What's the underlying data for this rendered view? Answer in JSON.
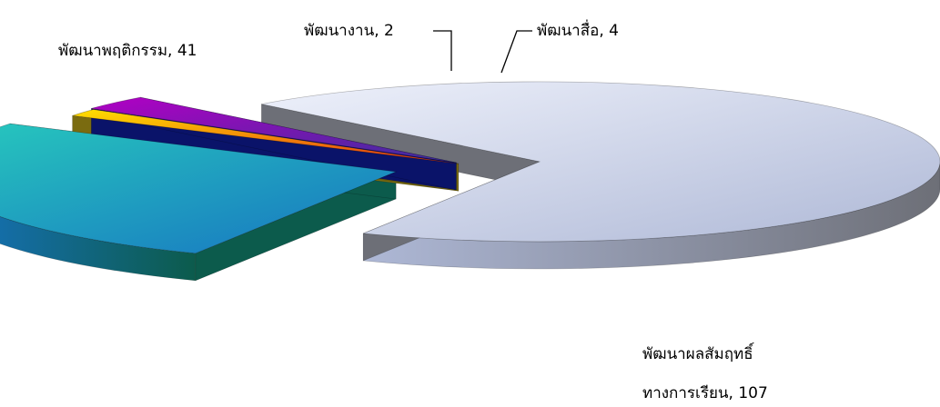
{
  "chart_data": {
    "type": "pie",
    "three_d": true,
    "exploded": true,
    "title": "",
    "slices": [
      {
        "label": "พัฒนาผลสัมฤทธิ์ ทางการเรียน",
        "label_lines": [
          "พัฒนาผลสัมฤทธิ์",
          "ทางการเรียน, 107"
        ],
        "value": 107,
        "colors": [
          "#eef1fb",
          "#aeb8d6",
          "#6d6f77"
        ]
      },
      {
        "label": "พัฒนาพฤติกรรม",
        "label_lines": [
          "พัฒนาพฤติกรรม, 41"
        ],
        "value": 41,
        "colors": [
          "#27c9bd",
          "#1773c2",
          "#0c5b4c"
        ]
      },
      {
        "label": "พัฒนางาน",
        "label_lines": [
          "พัฒนางาน, 2"
        ],
        "value": 2,
        "colors": [
          "#ffe000",
          "#e42f13",
          "#7a6b10"
        ]
      },
      {
        "label": "พัฒนาสื่อ",
        "label_lines": [
          "พัฒนาสื่อ, 4"
        ],
        "value": 4,
        "colors": [
          "#b200c4",
          "#3b2f9c",
          "#0a1369"
        ]
      }
    ]
  }
}
